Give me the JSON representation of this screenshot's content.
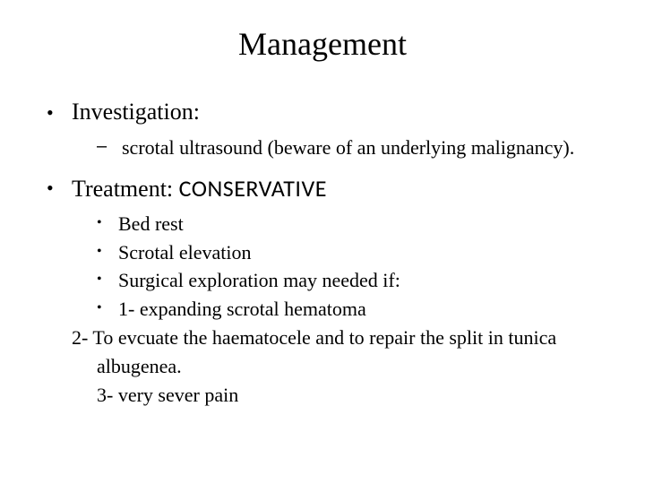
{
  "title": "Management",
  "sections": [
    {
      "heading": "Investigation:",
      "sub": [
        "scrotal ultrasound (beware of an underlying malignancy)."
      ]
    },
    {
      "heading_prefix": "Treatment: ",
      "heading_word": "CONSERVATIVE",
      "bullets": [
        "Bed rest",
        "Scrotal elevation",
        "Surgical exploration may needed if:",
        "1- expanding scrotal hematoma"
      ],
      "plain": [
        "2- To evcuate the haematocele and to repair the split in tunica albugenea.",
        "3- very sever pain"
      ]
    }
  ],
  "colors": {
    "text": "#000000",
    "background": "#ffffff"
  },
  "fonts": {
    "title_size": 36,
    "level1_size": 26,
    "level2_size": 22,
    "level3_size": 22
  }
}
